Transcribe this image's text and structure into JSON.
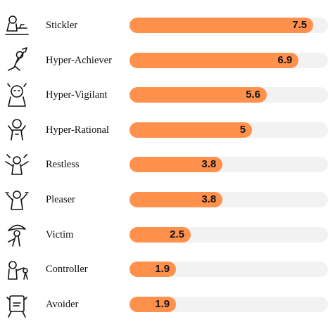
{
  "chart_data": {
    "type": "bar",
    "orientation": "horizontal",
    "categories": [
      "Stickler",
      "Hyper-Achiever",
      "Hyper-Vigilant",
      "Hyper-Rational",
      "Restless",
      "Pleaser",
      "Victim",
      "Controller",
      "Avoider"
    ],
    "values": [
      7.5,
      6.9,
      5.6,
      5,
      3.8,
      3.8,
      2.5,
      1.9,
      1.9
    ],
    "value_labels": [
      "7.5",
      "6.9",
      "5.6",
      "5",
      "3.8",
      "3.8",
      "2.5",
      "1.9",
      "1.9"
    ],
    "icons": [
      "stickler-icon",
      "hyper-achiever-icon",
      "hyper-vigilant-icon",
      "hyper-rational-icon",
      "restless-icon",
      "pleaser-icon",
      "victim-icon",
      "controller-icon",
      "avoider-icon"
    ],
    "xlim": [
      0,
      8.1
    ],
    "grid": false,
    "legend": "none",
    "colors": {
      "bar": "#FF914D",
      "track": "#F2F2F2",
      "text": "#111111"
    }
  }
}
